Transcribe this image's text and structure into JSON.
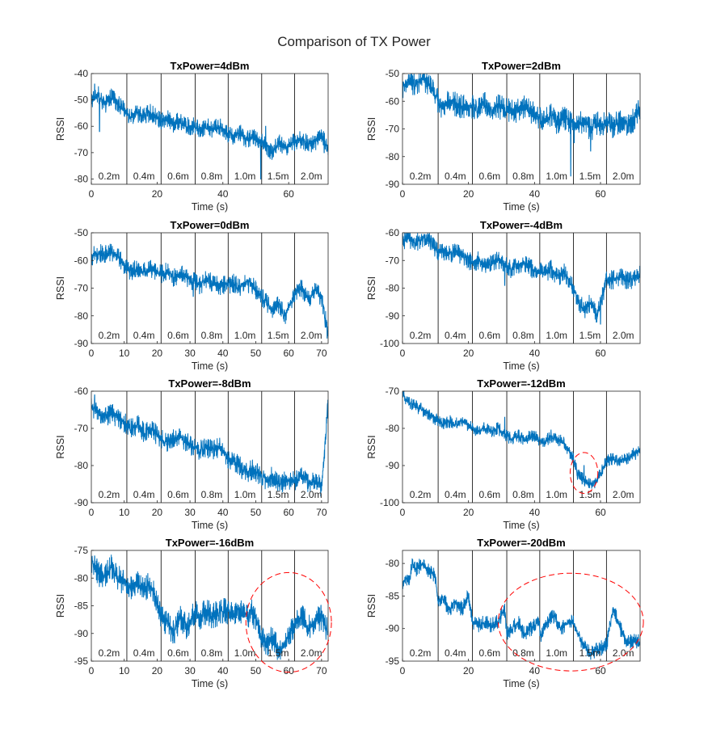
{
  "figure_title": "Comparison of TX Power",
  "chart_data": [
    {
      "type": "line",
      "title": "TxPower=4dBm",
      "xlabel": "Time (s)",
      "ylabel": "RSSI",
      "xlim": [
        0,
        72
      ],
      "ylim": [
        -82,
        -40
      ],
      "xticks": [
        0,
        20,
        40,
        60
      ],
      "yticks": [
        -80,
        -70,
        -60,
        -50,
        -40
      ],
      "color": "#0072BD",
      "segments": [
        "0.2m",
        "0.4m",
        "0.6m",
        "0.8m",
        "1.0m",
        "1.5m",
        "2.0m"
      ],
      "segment_boundaries": [
        10.8,
        21.2,
        31.6,
        41.6,
        51.8,
        61.8
      ],
      "series": [
        {
          "x": [
            0,
            2,
            4,
            6,
            8,
            10.8,
            12,
            14,
            16,
            18,
            21.2,
            23,
            25,
            27,
            29,
            31.6,
            33,
            35,
            37,
            39,
            41.6,
            43,
            45,
            47,
            49,
            51.8,
            53,
            55,
            57,
            59,
            61.8,
            64,
            66,
            68,
            70,
            72
          ],
          "values": [
            -50,
            -48,
            -52,
            -49,
            -51,
            -55,
            -56,
            -55,
            -56,
            -55,
            -58,
            -57,
            -59,
            -58,
            -60,
            -60,
            -61,
            -60,
            -61,
            -60,
            -63,
            -64,
            -62,
            -65,
            -64,
            -66,
            -67,
            -70,
            -66,
            -68,
            -66,
            -65,
            -67,
            -66,
            -64,
            -68
          ],
          "noise": 3.5,
          "spikes": [
            [
              1,
              -44
            ],
            [
              2.5,
              -62
            ],
            [
              51.5,
              -80
            ],
            [
              53,
              -60
            ],
            [
              70.8,
              -70
            ]
          ]
        }
      ]
    },
    {
      "type": "line",
      "title": "TxPower=2dBm",
      "xlabel": "Time (s)",
      "ylabel": "RSSI",
      "xlim": [
        0,
        72
      ],
      "ylim": [
        -90,
        -50
      ],
      "xticks": [
        0,
        20,
        40,
        60
      ],
      "yticks": [
        -90,
        -80,
        -70,
        -60,
        -50
      ],
      "color": "#0072BD",
      "segments": [
        "0.2m",
        "0.4m",
        "0.6m",
        "0.8m",
        "1.0m",
        "1.5m",
        "2.0m"
      ],
      "segment_boundaries": [
        10.8,
        21.2,
        31.6,
        41.6,
        51.8,
        61.8
      ],
      "series": [
        {
          "x": [
            0,
            2,
            4,
            6,
            8,
            10.8,
            12,
            14,
            16,
            18,
            21.2,
            23,
            25,
            27,
            29,
            31.6,
            33,
            35,
            37,
            39,
            41.6,
            43,
            45,
            47,
            49,
            51.8,
            53,
            55,
            57,
            59,
            61.8,
            64,
            66,
            68,
            70,
            72
          ],
          "values": [
            -55,
            -53,
            -54,
            -52,
            -54,
            -60,
            -62,
            -60,
            -61,
            -62,
            -62,
            -63,
            -61,
            -64,
            -62,
            -63,
            -64,
            -63,
            -62,
            -64,
            -66,
            -67,
            -65,
            -68,
            -66,
            -68,
            -69,
            -67,
            -70,
            -68,
            -68,
            -69,
            -67,
            -68,
            -67,
            -62
          ],
          "noise": 4.5,
          "spikes": [
            [
              51,
              -87
            ],
            [
              52,
              -75
            ],
            [
              57,
              -78
            ]
          ]
        }
      ]
    },
    {
      "type": "line",
      "title": "TxPower=0dBm",
      "xlabel": "Time (s)",
      "ylabel": "RSSI",
      "xlim": [
        0,
        72
      ],
      "ylim": [
        -90,
        -50
      ],
      "xticks": [
        0,
        10,
        20,
        30,
        40,
        50,
        60,
        70
      ],
      "yticks": [
        -90,
        -80,
        -70,
        -60,
        -50
      ],
      "color": "#0072BD",
      "segments": [
        "0.2m",
        "0.4m",
        "0.6m",
        "0.8m",
        "1.0m",
        "1.5m",
        "2.0m"
      ],
      "segment_boundaries": [
        10.8,
        21.2,
        31.6,
        41.6,
        51.8,
        61.8
      ],
      "series": [
        {
          "x": [
            0,
            2,
            4,
            6,
            8,
            10.8,
            12,
            14,
            16,
            18,
            21.2,
            23,
            25,
            27,
            29,
            31.6,
            33,
            35,
            37,
            39,
            41.6,
            43,
            45,
            47,
            49,
            51.8,
            53,
            55,
            57,
            59,
            61.8,
            64,
            66,
            68,
            70,
            72
          ],
          "values": [
            -59,
            -57,
            -58,
            -57,
            -58,
            -63,
            -64,
            -63,
            -64,
            -63,
            -65,
            -64,
            -66,
            -65,
            -66,
            -68,
            -69,
            -67,
            -68,
            -69,
            -69,
            -68,
            -70,
            -68,
            -69,
            -73,
            -75,
            -78,
            -76,
            -80,
            -72,
            -70,
            -74,
            -71,
            -73,
            -87
          ],
          "noise": 3.5,
          "spikes": [
            [
              31,
              -73
            ]
          ]
        }
      ]
    },
    {
      "type": "line",
      "title": "TxPower=-4dBm",
      "xlabel": "Time (s)",
      "ylabel": "RSSI",
      "xlim": [
        0,
        72
      ],
      "ylim": [
        -100,
        -60
      ],
      "xticks": [
        0,
        20,
        40,
        60
      ],
      "yticks": [
        -100,
        -90,
        -80,
        -70,
        -60
      ],
      "color": "#0072BD",
      "segments": [
        "0.2m",
        "0.4m",
        "0.6m",
        "0.8m",
        "1.0m",
        "1.5m",
        "2.0m"
      ],
      "segment_boundaries": [
        10.8,
        21.2,
        31.6,
        41.6,
        51.8,
        61.8
      ],
      "series": [
        {
          "x": [
            0,
            2,
            4,
            6,
            8,
            10.8,
            12,
            14,
            16,
            18,
            21.2,
            23,
            25,
            27,
            29,
            31.6,
            33,
            35,
            37,
            39,
            41.6,
            43,
            45,
            47,
            49,
            51.8,
            53,
            55,
            57,
            59,
            61.8,
            64,
            66,
            68,
            70,
            72
          ],
          "values": [
            -63,
            -62,
            -64,
            -62,
            -63,
            -67,
            -66,
            -68,
            -67,
            -68,
            -71,
            -70,
            -72,
            -71,
            -70,
            -72,
            -73,
            -72,
            -71,
            -73,
            -74,
            -75,
            -73,
            -76,
            -74,
            -80,
            -84,
            -88,
            -85,
            -90,
            -77,
            -77,
            -76,
            -77,
            -77,
            -75
          ],
          "noise": 3.5,
          "spikes": [
            [
              1,
              -60
            ],
            [
              31,
              -79
            ],
            [
              60,
              -93
            ]
          ]
        }
      ]
    },
    {
      "type": "line",
      "title": "TxPower=-8dBm",
      "xlabel": "Time (s)",
      "ylabel": "RSSI",
      "xlim": [
        0,
        72
      ],
      "ylim": [
        -90,
        -60
      ],
      "xticks": [
        0,
        10,
        20,
        30,
        40,
        50,
        60,
        70
      ],
      "yticks": [
        -90,
        -80,
        -70,
        -60
      ],
      "color": "#0072BD",
      "segments": [
        "0.2m",
        "0.4m",
        "0.6m",
        "0.8m",
        "1.0m",
        "1.5m",
        "2.0m"
      ],
      "segment_boundaries": [
        10.8,
        21.2,
        31.6,
        41.6,
        51.8,
        61.8
      ],
      "series": [
        {
          "x": [
            0,
            2,
            4,
            6,
            8,
            10.8,
            12,
            14,
            16,
            18,
            21.2,
            23,
            25,
            27,
            29,
            31.6,
            33,
            35,
            37,
            39,
            41.6,
            43,
            45,
            47,
            49,
            51.8,
            53,
            55,
            57,
            59,
            61.8,
            64,
            66,
            68,
            70,
            72
          ],
          "values": [
            -64,
            -66,
            -67,
            -66,
            -67,
            -69,
            -70,
            -69,
            -71,
            -70,
            -73,
            -74,
            -73,
            -72,
            -74,
            -75,
            -76,
            -75,
            -76,
            -75,
            -78,
            -79,
            -80,
            -82,
            -81,
            -83,
            -84,
            -83,
            -85,
            -84,
            -84,
            -83,
            -85,
            -84,
            -86,
            -63
          ],
          "noise": 2.8,
          "spikes": [
            [
              1,
              -61
            ]
          ]
        }
      ]
    },
    {
      "type": "line",
      "title": "TxPower=-12dBm",
      "xlabel": "Time (s)",
      "ylabel": "RSSI",
      "xlim": [
        0,
        72
      ],
      "ylim": [
        -100,
        -70
      ],
      "xticks": [
        0,
        20,
        40,
        60
      ],
      "yticks": [
        -100,
        -90,
        -80,
        -70
      ],
      "color": "#0072BD",
      "segments": [
        "0.2m",
        "0.4m",
        "0.6m",
        "0.8m",
        "1.0m",
        "1.5m",
        "2.0m"
      ],
      "segment_boundaries": [
        10.8,
        21.2,
        31.6,
        41.6,
        51.8,
        61.8
      ],
      "series": [
        {
          "x": [
            0,
            2,
            4,
            6,
            8,
            10.8,
            12,
            14,
            16,
            18,
            21.2,
            23,
            25,
            27,
            29,
            31.6,
            33,
            35,
            37,
            39,
            41.6,
            43,
            45,
            47,
            49,
            51.8,
            53,
            55,
            57,
            59,
            61.8,
            64,
            66,
            68,
            70,
            72
          ],
          "values": [
            -71,
            -73,
            -74,
            -75,
            -76,
            -78,
            -79,
            -78,
            -79,
            -78,
            -80,
            -81,
            -80,
            -81,
            -80,
            -82,
            -83,
            -82,
            -83,
            -82,
            -83,
            -84,
            -82,
            -83,
            -84,
            -88,
            -92,
            -94,
            -95,
            -94,
            -89,
            -88,
            -89,
            -88,
            -87,
            -86
          ],
          "noise": 1.8,
          "spikes": [
            [
              31,
              -77
            ],
            [
              55,
              -90
            ]
          ]
        }
      ]
    },
    {
      "type": "line",
      "title": "TxPower=-16dBm",
      "xlabel": "Time (s)",
      "ylabel": "RSSI",
      "xlim": [
        0,
        72
      ],
      "ylim": [
        -95,
        -75
      ],
      "xticks": [
        0,
        10,
        20,
        30,
        40,
        50,
        60,
        70
      ],
      "yticks": [
        -95,
        -90,
        -85,
        -80,
        -75
      ],
      "color": "#0072BD",
      "segments": [
        "0.2m",
        "0.4m",
        "0.6m",
        "0.8m",
        "1.0m",
        "1.5m",
        "2.0m"
      ],
      "segment_boundaries": [
        10.8,
        21.2,
        31.6,
        41.6,
        51.8,
        61.8
      ],
      "series": [
        {
          "x": [
            0,
            2,
            4,
            6,
            8,
            10.8,
            12,
            14,
            16,
            18,
            21.2,
            23,
            25,
            27,
            29,
            31.6,
            33,
            35,
            37,
            39,
            41.6,
            43,
            45,
            47,
            49,
            51.8,
            53,
            55,
            57,
            59,
            61.8,
            64,
            66,
            68,
            70,
            72
          ],
          "values": [
            -77,
            -79,
            -80,
            -78,
            -80,
            -81,
            -82,
            -81,
            -82,
            -81,
            -87,
            -88,
            -90,
            -87,
            -89,
            -86,
            -87,
            -86,
            -87,
            -86,
            -86,
            -87,
            -86,
            -87,
            -86,
            -91,
            -92,
            -91,
            -93,
            -92,
            -88,
            -87,
            -89,
            -88,
            -87,
            -90
          ],
          "noise": 2.4,
          "spikes": [
            [
              1,
              -76
            ]
          ]
        }
      ]
    },
    {
      "type": "line",
      "title": "TxPower=-20dBm",
      "xlabel": "Time (s)",
      "ylabel": "RSSI",
      "xlim": [
        0,
        72
      ],
      "ylim": [
        -95,
        -78
      ],
      "xticks": [
        0,
        20,
        40,
        60
      ],
      "yticks": [
        -95,
        -90,
        -85,
        -80
      ],
      "color": "#0072BD",
      "segments": [
        "0.2m",
        "0.4m",
        "0.6m",
        "0.8m",
        "1.0m",
        "1.5m",
        "2.0m"
      ],
      "segment_boundaries": [
        10.8,
        21.2,
        31.6,
        41.6,
        51.8,
        61.8
      ],
      "series": [
        {
          "x": [
            0,
            1,
            2,
            3,
            4,
            6,
            8,
            10,
            10.8,
            12,
            14,
            16,
            18,
            20,
            21.2,
            23,
            25,
            27,
            29,
            31,
            31.6,
            33,
            35,
            37,
            39,
            41,
            42,
            44,
            46,
            48,
            50,
            51.8,
            54,
            57,
            59,
            61,
            62,
            63,
            64,
            66,
            68
          ],
          "values": [
            -84,
            -82,
            -83,
            -80,
            -81,
            -80,
            -81,
            -82,
            -86,
            -85,
            -87,
            -86,
            -87,
            -85,
            -89,
            -89.5,
            -89,
            -89.5,
            -89,
            -87,
            -91,
            -90,
            -89,
            -91,
            -90,
            -89,
            -91,
            -89,
            -88,
            -90,
            -89,
            -89,
            -92,
            -94,
            -93,
            -93,
            -92,
            -89,
            -87,
            -90,
            -92
          ],
          "noise": 1.2,
          "spikes": []
        }
      ]
    }
  ],
  "annotations": [
    {
      "panel": 5,
      "shape": "ellipse",
      "center": [
        55,
        -92
      ],
      "radii": [
        4.2,
        5.5
      ],
      "color": "#FF0000",
      "style": "dashed"
    },
    {
      "panel": 6,
      "shape": "ellipse",
      "center": [
        60,
        -88
      ],
      "radii": [
        13,
        9
      ],
      "color": "#FF0000",
      "style": "dashed"
    },
    {
      "panel": 7,
      "shape": "ellipse",
      "center": [
        51,
        -89
      ],
      "radii": [
        22,
        7.5
      ],
      "color": "#FF0000",
      "style": "dashed"
    }
  ]
}
